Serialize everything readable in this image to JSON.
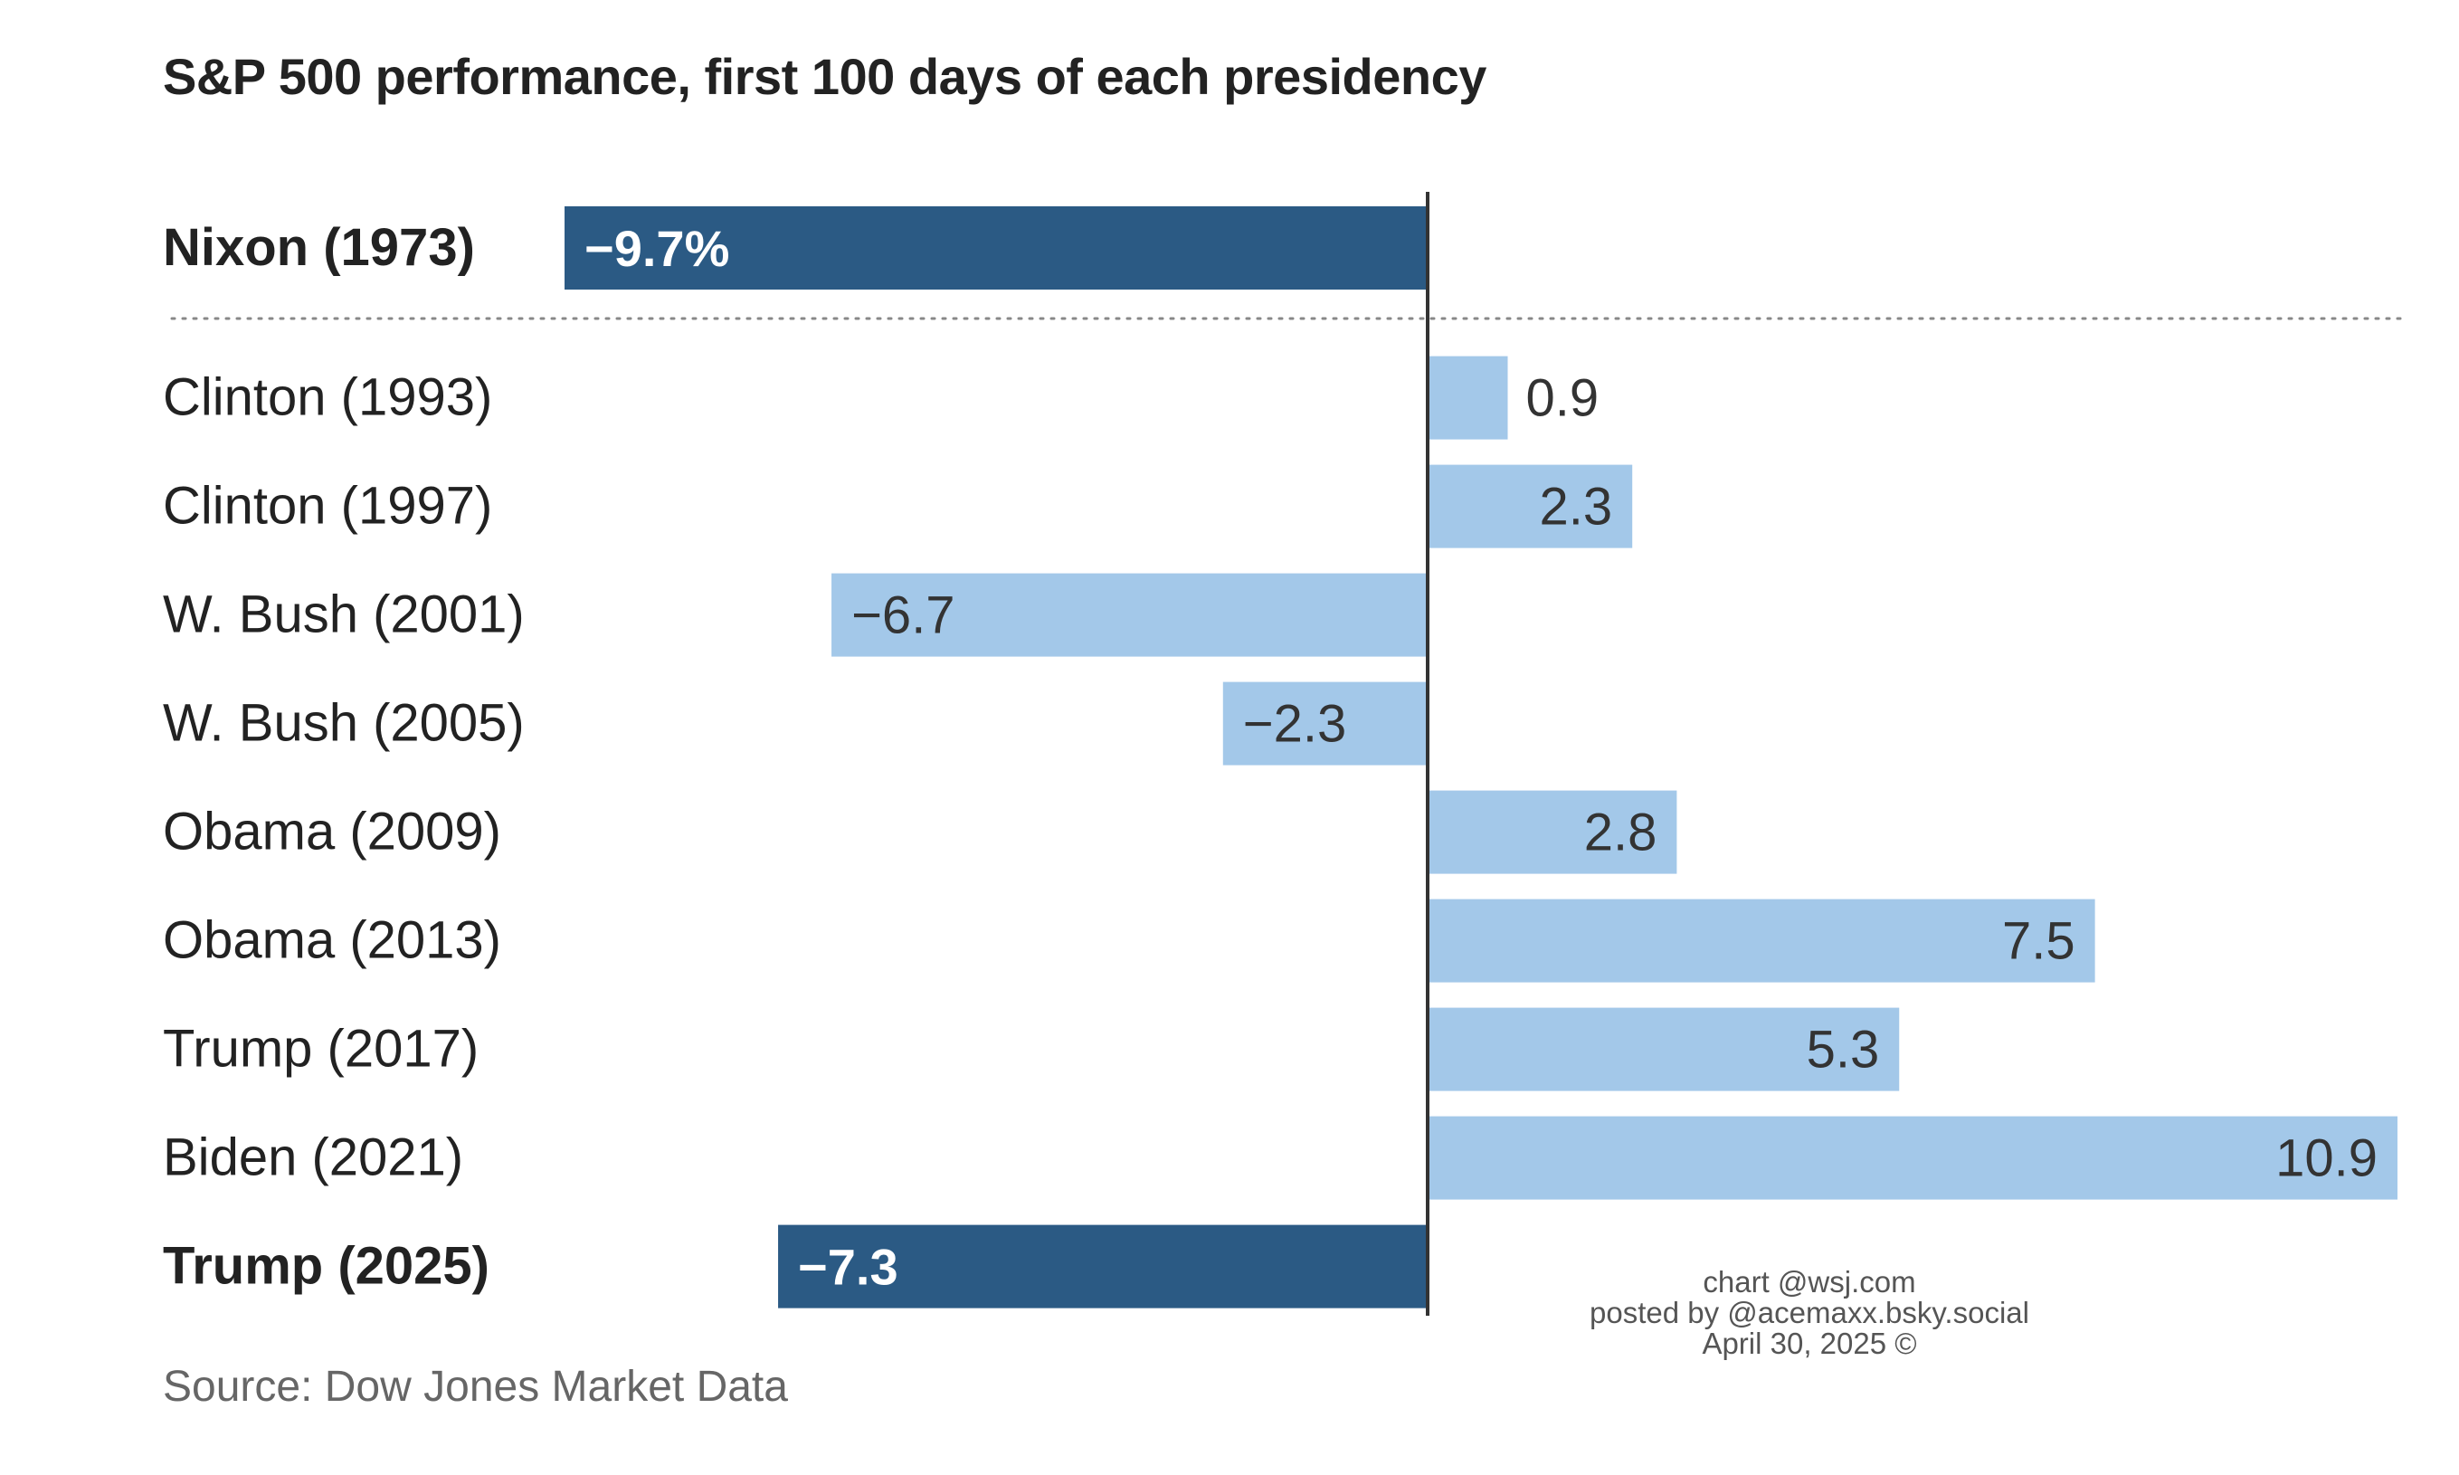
{
  "chart_data": {
    "type": "bar",
    "orientation": "horizontal",
    "title": "S&P 500 performance, first 100 days of each presidency",
    "categories": [
      "Nixon (1973)",
      "Clinton (1993)",
      "Clinton (1997)",
      "W. Bush (2001)",
      "W. Bush (2005)",
      "Obama (2009)",
      "Obama (2013)",
      "Trump (2017)",
      "Biden (2021)",
      "Trump (2025)"
    ],
    "values": [
      -9.7,
      0.9,
      2.3,
      -6.7,
      -2.3,
      2.8,
      7.5,
      5.3,
      10.9,
      -7.3
    ],
    "data_labels": [
      "−9.7%",
      "0.9",
      "2.3",
      "−6.7",
      "−2.3",
      "2.8",
      "7.5",
      "5.3",
      "10.9",
      "−7.3"
    ],
    "highlighted": [
      true,
      false,
      false,
      false,
      false,
      false,
      false,
      false,
      false,
      true
    ],
    "xlim": [
      -9.7,
      10.9
    ],
    "grid": false,
    "colors": {
      "highlight_bar": "#2b5a84",
      "bar": "#a3c8e9",
      "axis_line": "#333333",
      "separator": "#888888"
    }
  },
  "source": "Source: Dow Jones Market Data",
  "credits": [
    "chart @wsj.com",
    "posted by @acemaxx.bsky.social",
    "April 30, 2025 ©"
  ]
}
